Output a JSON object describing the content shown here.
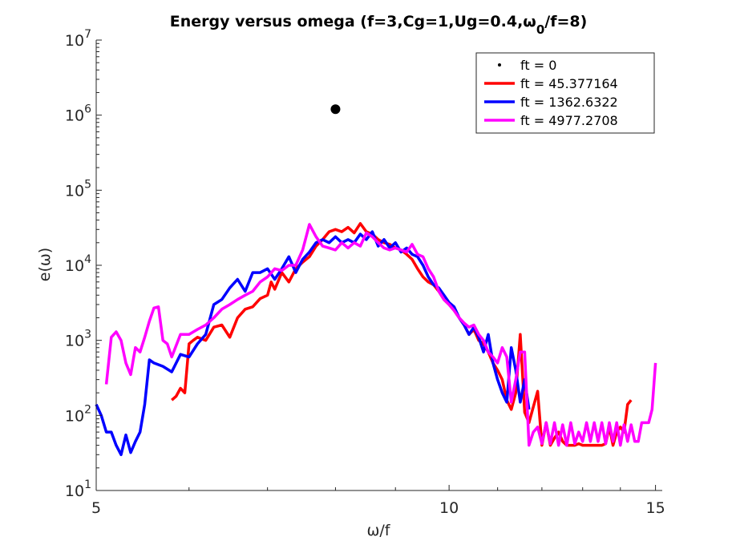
{
  "chart_data": {
    "type": "line",
    "title": "Energy versus omega (f=3,Cg=1,Ug=0.4,ω0/f=8)",
    "title_parts": {
      "prefix": "Energy versus omega (f=3,Cg=1,Ug=0.4,ω",
      "subscript": "0",
      "suffix": "/f=8)"
    },
    "xlabel": "ω/f",
    "ylabel": "e(ω)",
    "xscale": "log",
    "yscale": "log",
    "xlim": [
      5,
      15.2
    ],
    "ylim": [
      10,
      10000000
    ],
    "xticks": [
      5,
      10,
      15
    ],
    "xtick_labels": [
      "5",
      "10",
      "15"
    ],
    "yticks": [
      10,
      100,
      1000,
      10000,
      100000,
      1000000,
      10000000
    ],
    "ytick_labels": [
      {
        "base": "10",
        "exp": "1"
      },
      {
        "base": "10",
        "exp": "2"
      },
      {
        "base": "10",
        "exp": "3"
      },
      {
        "base": "10",
        "exp": "4"
      },
      {
        "base": "10",
        "exp": "5"
      },
      {
        "base": "10",
        "exp": "6"
      },
      {
        "base": "10",
        "exp": "7"
      }
    ],
    "grid": false,
    "legend_position": "top-right",
    "series": [
      {
        "name": "ft = 0",
        "color": "#000000",
        "style": "marker",
        "points": [
          [
            8,
            1200000
          ]
        ]
      },
      {
        "name": "ft = 45.377164",
        "color": "#ff0000",
        "style": "line",
        "points": [
          [
            5.8,
            160
          ],
          [
            5.85,
            180
          ],
          [
            5.9,
            230
          ],
          [
            5.95,
            200
          ],
          [
            6.0,
            900
          ],
          [
            6.05,
            1000
          ],
          [
            6.1,
            1100
          ],
          [
            6.2,
            1000
          ],
          [
            6.3,
            1500
          ],
          [
            6.4,
            1600
          ],
          [
            6.5,
            1100
          ],
          [
            6.6,
            2000
          ],
          [
            6.7,
            2600
          ],
          [
            6.8,
            2800
          ],
          [
            6.9,
            3600
          ],
          [
            7.0,
            4000
          ],
          [
            7.05,
            6000
          ],
          [
            7.1,
            4800
          ],
          [
            7.2,
            8000
          ],
          [
            7.3,
            6000
          ],
          [
            7.4,
            9000
          ],
          [
            7.5,
            11000
          ],
          [
            7.6,
            13000
          ],
          [
            7.7,
            18000
          ],
          [
            7.8,
            22000
          ],
          [
            7.9,
            28000
          ],
          [
            8.0,
            30000
          ],
          [
            8.1,
            28000
          ],
          [
            8.2,
            32000
          ],
          [
            8.3,
            27000
          ],
          [
            8.4,
            36000
          ],
          [
            8.5,
            28000
          ],
          [
            8.6,
            26000
          ],
          [
            8.7,
            22000
          ],
          [
            8.8,
            20000
          ],
          [
            8.9,
            19000
          ],
          [
            9.0,
            17000
          ],
          [
            9.1,
            16000
          ],
          [
            9.2,
            14000
          ],
          [
            9.3,
            12000
          ],
          [
            9.4,
            9000
          ],
          [
            9.5,
            7000
          ],
          [
            9.6,
            6000
          ],
          [
            9.7,
            5500
          ],
          [
            9.8,
            4500
          ],
          [
            9.9,
            3500
          ],
          [
            10.0,
            3000
          ],
          [
            10.1,
            2500
          ],
          [
            10.2,
            2000
          ],
          [
            10.3,
            1600
          ],
          [
            10.4,
            1200
          ],
          [
            10.5,
            1400
          ],
          [
            10.6,
            1000
          ],
          [
            10.7,
            900
          ],
          [
            10.8,
            700
          ],
          [
            10.9,
            500
          ],
          [
            11.0,
            400
          ],
          [
            11.1,
            300
          ],
          [
            11.2,
            160
          ],
          [
            11.3,
            120
          ],
          [
            11.4,
            200
          ],
          [
            11.5,
            1200
          ],
          [
            11.6,
            110
          ],
          [
            11.7,
            80
          ],
          [
            11.8,
            130
          ],
          [
            11.9,
            210
          ],
          [
            12.0,
            40
          ],
          [
            12.1,
            80
          ],
          [
            12.2,
            40
          ],
          [
            12.3,
            50
          ],
          [
            12.4,
            60
          ],
          [
            12.5,
            45
          ],
          [
            12.6,
            40
          ],
          [
            12.7,
            40
          ],
          [
            12.8,
            40
          ],
          [
            12.9,
            42
          ],
          [
            13.0,
            40
          ],
          [
            13.1,
            40
          ],
          [
            13.2,
            40
          ],
          [
            13.3,
            40
          ],
          [
            13.4,
            40
          ],
          [
            13.5,
            40
          ],
          [
            13.6,
            42
          ],
          [
            13.7,
            70
          ],
          [
            13.8,
            40
          ],
          [
            13.9,
            60
          ],
          [
            14.0,
            70
          ],
          [
            14.1,
            60
          ],
          [
            14.2,
            140
          ],
          [
            14.3,
            160
          ]
        ]
      },
      {
        "name": "ft = 1362.6322",
        "color": "#0000ff",
        "style": "line",
        "points": [
          [
            5.0,
            140
          ],
          [
            5.05,
            100
          ],
          [
            5.1,
            60
          ],
          [
            5.15,
            60
          ],
          [
            5.2,
            40
          ],
          [
            5.25,
            30
          ],
          [
            5.3,
            55
          ],
          [
            5.35,
            32
          ],
          [
            5.4,
            45
          ],
          [
            5.45,
            60
          ],
          [
            5.5,
            140
          ],
          [
            5.55,
            550
          ],
          [
            5.6,
            500
          ],
          [
            5.7,
            450
          ],
          [
            5.8,
            380
          ],
          [
            5.9,
            650
          ],
          [
            6.0,
            600
          ],
          [
            6.1,
            900
          ],
          [
            6.2,
            1200
          ],
          [
            6.3,
            3000
          ],
          [
            6.4,
            3500
          ],
          [
            6.5,
            5000
          ],
          [
            6.6,
            6500
          ],
          [
            6.7,
            4500
          ],
          [
            6.8,
            8000
          ],
          [
            6.9,
            8000
          ],
          [
            7.0,
            9000
          ],
          [
            7.1,
            6500
          ],
          [
            7.2,
            9000
          ],
          [
            7.3,
            13000
          ],
          [
            7.4,
            8000
          ],
          [
            7.5,
            12000
          ],
          [
            7.6,
            15000
          ],
          [
            7.7,
            20000
          ],
          [
            7.8,
            22000
          ],
          [
            7.9,
            20000
          ],
          [
            8.0,
            24000
          ],
          [
            8.1,
            20000
          ],
          [
            8.2,
            22000
          ],
          [
            8.3,
            20000
          ],
          [
            8.4,
            26000
          ],
          [
            8.5,
            22000
          ],
          [
            8.6,
            28000
          ],
          [
            8.7,
            18000
          ],
          [
            8.8,
            22000
          ],
          [
            8.9,
            17000
          ],
          [
            9.0,
            20000
          ],
          [
            9.1,
            15000
          ],
          [
            9.2,
            17000
          ],
          [
            9.3,
            14000
          ],
          [
            9.4,
            13000
          ],
          [
            9.5,
            10000
          ],
          [
            9.6,
            7000
          ],
          [
            9.7,
            5500
          ],
          [
            9.8,
            5000
          ],
          [
            9.9,
            4000
          ],
          [
            10.0,
            3200
          ],
          [
            10.1,
            2800
          ],
          [
            10.2,
            2000
          ],
          [
            10.3,
            1600
          ],
          [
            10.4,
            1200
          ],
          [
            10.5,
            1500
          ],
          [
            10.6,
            1100
          ],
          [
            10.7,
            700
          ],
          [
            10.8,
            1200
          ],
          [
            10.9,
            500
          ],
          [
            11.0,
            300
          ],
          [
            11.1,
            200
          ],
          [
            11.2,
            150
          ],
          [
            11.3,
            800
          ],
          [
            11.4,
            400
          ],
          [
            11.5,
            150
          ],
          [
            11.6,
            300
          ],
          [
            11.7,
            120
          ]
        ]
      },
      {
        "name": "ft = 4977.2708",
        "color": "#ff00ff",
        "style": "line",
        "points": [
          [
            5.1,
            260
          ],
          [
            5.15,
            1100
          ],
          [
            5.2,
            1300
          ],
          [
            5.25,
            1000
          ],
          [
            5.3,
            500
          ],
          [
            5.35,
            350
          ],
          [
            5.4,
            800
          ],
          [
            5.45,
            700
          ],
          [
            5.5,
            1100
          ],
          [
            5.55,
            1800
          ],
          [
            5.6,
            2700
          ],
          [
            5.65,
            2800
          ],
          [
            5.7,
            1000
          ],
          [
            5.75,
            900
          ],
          [
            5.8,
            600
          ],
          [
            5.9,
            1200
          ],
          [
            6.0,
            1200
          ],
          [
            6.1,
            1400
          ],
          [
            6.2,
            1600
          ],
          [
            6.3,
            2000
          ],
          [
            6.4,
            2600
          ],
          [
            6.5,
            3000
          ],
          [
            6.6,
            3500
          ],
          [
            6.7,
            4000
          ],
          [
            6.8,
            4500
          ],
          [
            6.9,
            6000
          ],
          [
            7.0,
            7000
          ],
          [
            7.1,
            9000
          ],
          [
            7.2,
            8500
          ],
          [
            7.3,
            10000
          ],
          [
            7.4,
            10000
          ],
          [
            7.5,
            16000
          ],
          [
            7.6,
            35000
          ],
          [
            7.7,
            24000
          ],
          [
            7.8,
            18000
          ],
          [
            7.9,
            17000
          ],
          [
            8.0,
            16000
          ],
          [
            8.1,
            20000
          ],
          [
            8.2,
            17000
          ],
          [
            8.3,
            20000
          ],
          [
            8.4,
            18000
          ],
          [
            8.5,
            27000
          ],
          [
            8.6,
            24000
          ],
          [
            8.7,
            20000
          ],
          [
            8.8,
            17000
          ],
          [
            8.9,
            16000
          ],
          [
            9.0,
            17000
          ],
          [
            9.1,
            16000
          ],
          [
            9.2,
            15000
          ],
          [
            9.3,
            19000
          ],
          [
            9.4,
            14000
          ],
          [
            9.5,
            13000
          ],
          [
            9.6,
            9000
          ],
          [
            9.7,
            7000
          ],
          [
            9.8,
            4500
          ],
          [
            9.9,
            3500
          ],
          [
            10.0,
            3000
          ],
          [
            10.1,
            2500
          ],
          [
            10.2,
            2000
          ],
          [
            10.3,
            1700
          ],
          [
            10.4,
            1500
          ],
          [
            10.5,
            1600
          ],
          [
            10.6,
            1200
          ],
          [
            10.7,
            1000
          ],
          [
            10.8,
            700
          ],
          [
            10.9,
            600
          ],
          [
            11.0,
            500
          ],
          [
            11.1,
            800
          ],
          [
            11.2,
            600
          ],
          [
            11.3,
            150
          ],
          [
            11.4,
            300
          ],
          [
            11.5,
            700
          ],
          [
            11.6,
            700
          ],
          [
            11.7,
            40
          ],
          [
            11.8,
            60
          ],
          [
            11.9,
            70
          ],
          [
            12.0,
            42
          ],
          [
            12.1,
            80
          ],
          [
            12.2,
            42
          ],
          [
            12.3,
            80
          ],
          [
            12.4,
            40
          ],
          [
            12.5,
            75
          ],
          [
            12.6,
            40
          ],
          [
            12.7,
            80
          ],
          [
            12.8,
            42
          ],
          [
            12.9,
            60
          ],
          [
            13.0,
            45
          ],
          [
            13.1,
            80
          ],
          [
            13.2,
            45
          ],
          [
            13.3,
            80
          ],
          [
            13.4,
            45
          ],
          [
            13.5,
            80
          ],
          [
            13.6,
            42
          ],
          [
            13.7,
            80
          ],
          [
            13.8,
            45
          ],
          [
            13.9,
            80
          ],
          [
            14.0,
            40
          ],
          [
            14.1,
            75
          ],
          [
            14.2,
            45
          ],
          [
            14.3,
            75
          ],
          [
            14.4,
            45
          ],
          [
            14.5,
            45
          ],
          [
            14.6,
            80
          ],
          [
            14.7,
            80
          ],
          [
            14.8,
            80
          ],
          [
            14.9,
            120
          ],
          [
            15.0,
            500
          ]
        ]
      }
    ]
  }
}
